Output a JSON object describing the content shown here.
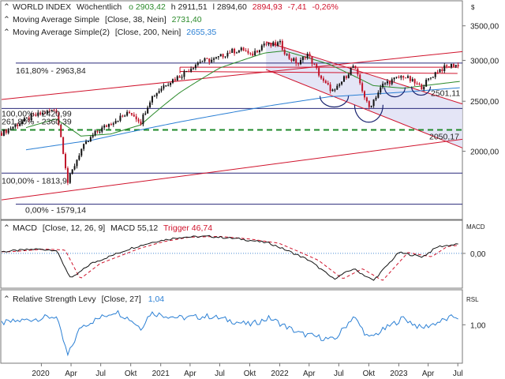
{
  "chart_data": [
    {
      "type": "candlestick",
      "panel": "price",
      "header": {
        "instrument": "WORLD INDEX",
        "interval": "Wöchentlich",
        "open_text": "o 2903,42",
        "high_text": "h 2911,51",
        "low_text": "l 2894,60",
        "close_text": "2894,93",
        "change_text": "-7,41",
        "change_pct_text": "-0,26%"
      },
      "indicators": [
        {
          "label": "Moving Average Simple",
          "params": "[Close, 38, Nein]",
          "value_text": "2731,40",
          "color": "#2a8a2a"
        },
        {
          "label": "Moving Average Simple(2)",
          "params": "[Close, 200, Nein]",
          "value_text": "2655,35",
          "color": "#2a7fd4"
        }
      ],
      "y_ticks": [
        2000,
        2500,
        3000,
        3500
      ],
      "y_tick_labels": [
        "2000,00",
        "2500,00",
        "3000,00",
        "3500,00"
      ],
      "ylim": [
        1480,
        3900
      ],
      "fib_levels": [
        {
          "text": "161,80% - 2963,84",
          "value": 2963.84
        },
        {
          "text": "100,00% - 1813,9",
          "value": 1813.9
        },
        {
          "text": "0,00% - 1579,14",
          "value": 1579.14
        },
        {
          "text": "261,80% - 2360,39",
          "value": 2360.39
        },
        {
          "text": "100,00% - 2420,99",
          "value": 2420.99
        }
      ],
      "annotations": [
        {
          "text": "2501,11",
          "value": 2501.11
        },
        {
          "text": "2050,17",
          "value": 2050.17
        }
      ],
      "dashed_support": 2200,
      "x_date_range": [
        "2019-09-01",
        "2023-07-15"
      ],
      "weekly_close_anchors": [
        [
          "2019-09-01",
          2170
        ],
        [
          "2019-12-01",
          2330
        ],
        [
          "2020-02-15",
          2410
        ],
        [
          "2020-03-22",
          1740
        ],
        [
          "2020-05-01",
          2010
        ],
        [
          "2020-06-15",
          2170
        ],
        [
          "2020-08-15",
          2300
        ],
        [
          "2020-10-01",
          2380
        ],
        [
          "2020-11-01",
          2280
        ],
        [
          "2020-12-01",
          2530
        ],
        [
          "2021-01-15",
          2700
        ],
        [
          "2021-03-01",
          2800
        ],
        [
          "2021-05-01",
          2990
        ],
        [
          "2021-06-15",
          3010
        ],
        [
          "2021-08-01",
          3120
        ],
        [
          "2021-09-15",
          3150
        ],
        [
          "2021-10-01",
          3050
        ],
        [
          "2021-11-15",
          3240
        ],
        [
          "2021-12-01",
          3200
        ],
        [
          "2022-01-01",
          3240
        ],
        [
          "2022-01-25",
          3050
        ],
        [
          "2022-03-01",
          2950
        ],
        [
          "2022-03-25",
          3100
        ],
        [
          "2022-05-15",
          2720
        ],
        [
          "2022-06-17",
          2600
        ],
        [
          "2022-08-15",
          2930
        ],
        [
          "2022-09-30",
          2420
        ],
        [
          "2022-11-15",
          2700
        ],
        [
          "2023-01-15",
          2800
        ],
        [
          "2023-03-10",
          2660
        ],
        [
          "2023-05-01",
          2870
        ],
        [
          "2023-06-23",
          2950
        ],
        [
          "2023-07-07",
          2895
        ]
      ]
    },
    {
      "type": "line",
      "panel": "macd",
      "header": {
        "label": "MACD",
        "params": "[Close, 12, 26, 9]",
        "macd_text": "MACD 55,12",
        "trigger_text": "Trigger 46,74"
      },
      "side_label": "MACD",
      "y_tick_labels": [
        "0,00"
      ],
      "y_ticks": [
        0
      ],
      "ylim": [
        -200,
        190
      ],
      "macd_anchors": [
        [
          "2019-09-01",
          10
        ],
        [
          "2019-12-15",
          25
        ],
        [
          "2020-02-15",
          20
        ],
        [
          "2020-04-01",
          -150
        ],
        [
          "2020-06-01",
          -60
        ],
        [
          "2020-10-01",
          30
        ],
        [
          "2020-12-15",
          70
        ],
        [
          "2021-03-01",
          95
        ],
        [
          "2021-06-01",
          100
        ],
        [
          "2021-09-01",
          85
        ],
        [
          "2021-12-01",
          60
        ],
        [
          "2022-02-01",
          10
        ],
        [
          "2022-04-01",
          -40
        ],
        [
          "2022-06-15",
          -150
        ],
        [
          "2022-08-15",
          -90
        ],
        [
          "2022-10-15",
          -160
        ],
        [
          "2023-01-01",
          5
        ],
        [
          "2023-03-15",
          -20
        ],
        [
          "2023-05-01",
          40
        ],
        [
          "2023-07-07",
          55
        ]
      ]
    },
    {
      "type": "line",
      "panel": "rsl",
      "header": {
        "label": "Relative Strength Levy",
        "params": "[Close, 27]",
        "value_text": "1,04"
      },
      "side_label": "RSL",
      "y_tick_labels": [
        "1,00"
      ],
      "y_ticks": [
        1.0
      ],
      "ylim": [
        0.78,
        1.2
      ],
      "rsl_anchors": [
        [
          "2019-09-01",
          1.01
        ],
        [
          "2020-02-15",
          1.05
        ],
        [
          "2020-03-22",
          0.82
        ],
        [
          "2020-05-01",
          0.99
        ],
        [
          "2020-08-15",
          1.08
        ],
        [
          "2020-10-01",
          1.03
        ],
        [
          "2020-11-01",
          0.98
        ],
        [
          "2020-12-01",
          1.07
        ],
        [
          "2021-03-01",
          1.04
        ],
        [
          "2021-06-01",
          1.05
        ],
        [
          "2021-10-01",
          1.0
        ],
        [
          "2021-12-01",
          1.04
        ],
        [
          "2022-03-01",
          0.95
        ],
        [
          "2022-06-17",
          0.91
        ],
        [
          "2022-08-15",
          1.05
        ],
        [
          "2022-10-01",
          0.92
        ],
        [
          "2023-01-15",
          1.04
        ],
        [
          "2023-03-10",
          0.98
        ],
        [
          "2023-06-23",
          1.05
        ],
        [
          "2023-07-07",
          1.04
        ]
      ]
    }
  ],
  "x_axis": {
    "tick_labels": [
      "2020",
      "Apr",
      "Jul",
      "Okt",
      "2021",
      "Apr",
      "Jul",
      "Okt",
      "2022",
      "Apr",
      "Jul",
      "Okt",
      "2023",
      "Apr",
      "Jul"
    ],
    "tick_dates": [
      "2020-01-01",
      "2020-04-01",
      "2020-07-01",
      "2020-10-01",
      "2021-01-01",
      "2021-04-01",
      "2021-07-01",
      "2021-10-01",
      "2022-01-01",
      "2022-04-01",
      "2022-07-01",
      "2022-10-01",
      "2023-01-01",
      "2023-04-01",
      "2023-07-01"
    ]
  },
  "symbols": {
    "corner_label": "$",
    "collapse_icon": "collapse-icon"
  },
  "colors": {
    "bull_candle": "#111111",
    "bear_candle": "#c0152a",
    "channel_line": "#d0132c",
    "channel_fill": "#dfe0f5",
    "support_dashed": "#1f8a2a",
    "fib_line": "#2a2a7a",
    "macd_line": "#111111",
    "trigger_line": "#d0132c",
    "rsl_line": "#2a7fd4",
    "header_up": "#2a8a2a",
    "header_down": "#d0132c",
    "header_blue": "#2a7fd4"
  }
}
